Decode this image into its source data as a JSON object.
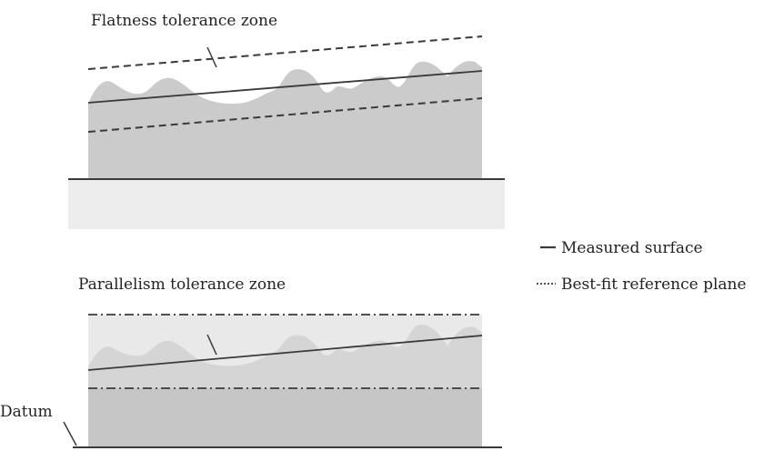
{
  "labels": {
    "flatness": "Flatness tolerance zone",
    "parallelism": "Parallelism tolerance zone",
    "datum": "Datum"
  },
  "legend": {
    "measured": "Measured surface",
    "bestfit": "Best-fit reference plane"
  },
  "colors": {
    "body": "#cbcbcb",
    "zone": "#e9e9e9",
    "base": "#ededed",
    "line": "#3a3a3a"
  }
}
